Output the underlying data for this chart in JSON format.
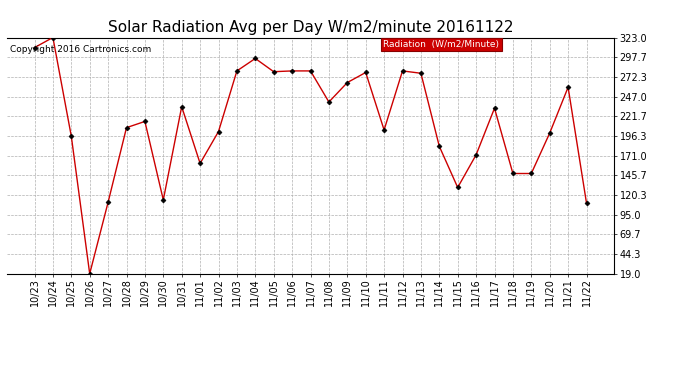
{
  "title": "Solar Radiation Avg per Day W/m2/minute 20161122",
  "copyright_text": "Copyright 2016 Cartronics.com",
  "legend_label": "Radiation  (W/m2/Minute)",
  "labels": [
    "10/23",
    "10/24",
    "10/25",
    "10/26",
    "10/27",
    "10/28",
    "10/29",
    "10/30",
    "10/31",
    "11/01",
    "11/02",
    "11/03",
    "11/04",
    "11/05",
    "11/06",
    "11/07",
    "11/08",
    "11/09",
    "11/10",
    "11/11",
    "11/12",
    "11/13",
    "11/14",
    "11/15",
    "11/16",
    "11/17",
    "11/18",
    "11/19",
    "11/20",
    "11/21",
    "11/22"
  ],
  "values": [
    310,
    323,
    196,
    19,
    111,
    207,
    215,
    114,
    234,
    161,
    202,
    280,
    296,
    279,
    280,
    280,
    240,
    265,
    278,
    204,
    280,
    277,
    183,
    130,
    172,
    232,
    148,
    148,
    200,
    259,
    110
  ],
  "y_ticks": [
    19.0,
    44.3,
    69.7,
    95.0,
    120.3,
    145.7,
    171.0,
    196.3,
    221.7,
    247.0,
    272.3,
    297.7,
    323.0
  ],
  "y_min": 19.0,
  "y_max": 323.0,
  "line_color": "#cc0000",
  "marker_color": "#000000",
  "bg_color": "#ffffff",
  "plot_bg_color": "#ffffff",
  "grid_color": "#b0b0b0",
  "legend_bg": "#cc0000",
  "legend_text_color": "#ffffff",
  "title_fontsize": 11,
  "tick_fontsize": 7,
  "copyright_fontsize": 6.5
}
